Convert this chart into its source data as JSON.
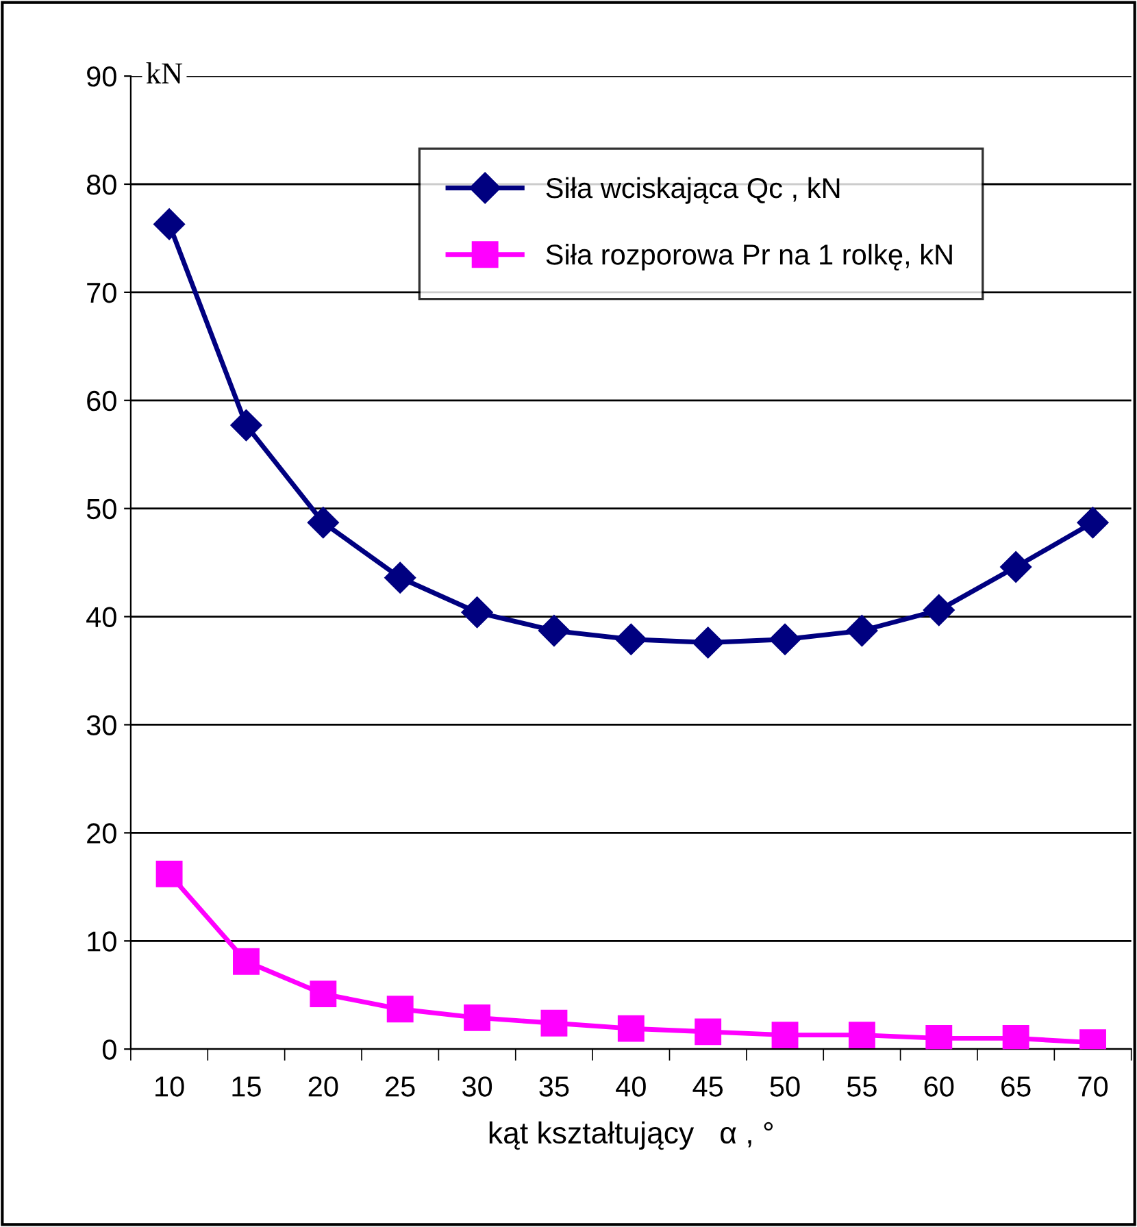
{
  "chart_data": {
    "type": "line",
    "ylabel": "kN",
    "xlabel": "kąt kształtujący   α , °",
    "categories": [
      "10",
      "15",
      "20",
      "25",
      "30",
      "35",
      "40",
      "45",
      "50",
      "55",
      "60",
      "65",
      "70"
    ],
    "series": [
      {
        "name": "Siła wciskająca Qc , kN",
        "color": "#000080",
        "marker": "diamond",
        "values": [
          76.3,
          57.7,
          48.7,
          43.6,
          40.4,
          38.7,
          37.9,
          37.6,
          37.9,
          38.7,
          40.6,
          44.6,
          48.7
        ]
      },
      {
        "name": "Siła rozporowa Pr na 1 rolkę, kN",
        "color": "#ff00ff",
        "marker": "square",
        "values": [
          16.2,
          8.1,
          5.1,
          3.7,
          2.9,
          2.4,
          1.9,
          1.6,
          1.3,
          1.3,
          1.0,
          1.0,
          0.6
        ]
      }
    ],
    "ylim": [
      0,
      90
    ],
    "yticks": [
      0,
      10,
      20,
      30,
      40,
      50,
      60,
      70,
      80,
      90
    ],
    "grid": "y",
    "legend": "top",
    "line_style": "solid"
  }
}
